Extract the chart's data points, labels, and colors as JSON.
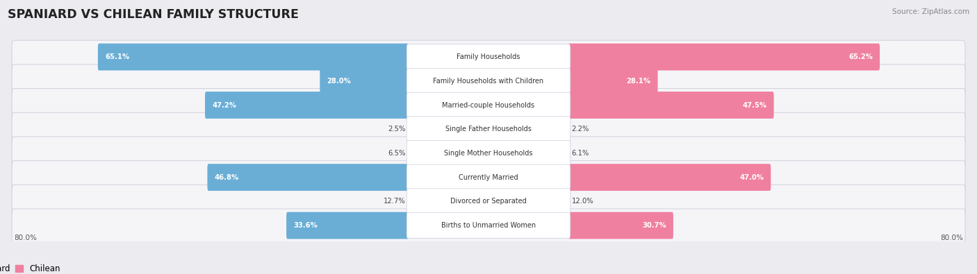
{
  "title": "SPANIARD VS CHILEAN FAMILY STRUCTURE",
  "source": "Source: ZipAtlas.com",
  "categories": [
    "Family Households",
    "Family Households with Children",
    "Married-couple Households",
    "Single Father Households",
    "Single Mother Households",
    "Currently Married",
    "Divorced or Separated",
    "Births to Unmarried Women"
  ],
  "spaniard_values": [
    65.1,
    28.0,
    47.2,
    2.5,
    6.5,
    46.8,
    12.7,
    33.6
  ],
  "chilean_values": [
    65.2,
    28.1,
    47.5,
    2.2,
    6.1,
    47.0,
    12.0,
    30.7
  ],
  "spaniard_color": "#6aaed6",
  "chilean_color": "#f080a0",
  "spaniard_color_light": "#b0cfe8",
  "chilean_color_light": "#f5b8cc",
  "max_value": 80.0,
  "background_color": "#ebebf0",
  "row_bg_color": "#f5f5f8",
  "row_border_color": "#d0d0dc",
  "axis_label_left": "80.0%",
  "axis_label_right": "80.0%",
  "legend_spaniard": "Spaniard",
  "legend_chilean": "Chilean",
  "label_threshold": 15
}
